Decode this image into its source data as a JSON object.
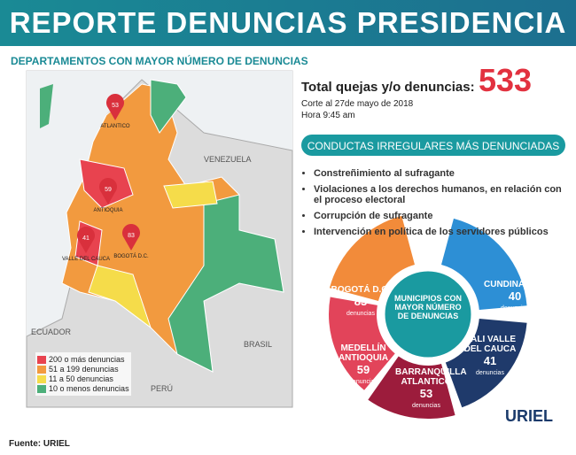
{
  "header": {
    "title": "REPORTE DENUNCIAS PRESIDENCIA"
  },
  "map": {
    "title": "DEPARTAMENTOS CON MAYOR NÚMERO DE DENUNCIAS",
    "country_labels": [
      "VENEZUELA",
      "ECUADOR",
      "BRASIL",
      "PERÚ"
    ],
    "pins": [
      {
        "value": "53",
        "label": "ATLANTICO"
      },
      {
        "value": "59",
        "label": "ANTIOQUIA"
      },
      {
        "value": "41",
        "label": "VALLE DEL CAUCA"
      },
      {
        "value": "83",
        "label": "BOGOTÁ D.C."
      }
    ],
    "legend": [
      {
        "label": "200 o más denuncias",
        "color": "#e8434f"
      },
      {
        "label": "51 a 199 denuncias",
        "color": "#f29a3f"
      },
      {
        "label": "11 a 50 denuncias",
        "color": "#f5dc4a"
      },
      {
        "label": "10 o menos denuncias",
        "color": "#4caf7a"
      }
    ]
  },
  "summary": {
    "total_label": "Total quejas y/o denuncias:",
    "total": "533",
    "cutoff": "Corte al 27de mayo de 2018",
    "time": "Hora 9:45 am"
  },
  "conducts": {
    "title": "CONDUCTAS IRREGULARES MÁS DENUNCIADAS",
    "items": [
      "Constreñimiento al sufragante",
      "Violaciones a los derechos humanos, en relación con el proceso electoral",
      "Corrupción de sufragante",
      "Intervención en política de los servidores públicos"
    ]
  },
  "breakdown": {
    "center": "MUNICIPIOS CON MAYOR NÚMERO DE DENUNCIAS",
    "segments": [
      {
        "name": "BOGOTÁ D.C.",
        "value": "83",
        "unit": "denuncias",
        "color": "#f28b3a"
      },
      {
        "name": "CUNDINAMARCA",
        "value": "40",
        "unit": "denuncias",
        "color": "#2d8fd5"
      },
      {
        "name": "CALI VALLE DEL CAUCA",
        "value": "41",
        "unit": "denuncias",
        "color": "#1f3a6b"
      },
      {
        "name": "BARRANQUILLA ATLANTICO",
        "value": "53",
        "unit": "denuncias",
        "color": "#9c1c3c"
      },
      {
        "name": "MEDELLÍN ANTIOQUIA",
        "value": "59",
        "unit": "denuncias",
        "color": "#e2445a"
      }
    ]
  },
  "logo": "URIEL",
  "source": "Fuente: URIEL"
}
